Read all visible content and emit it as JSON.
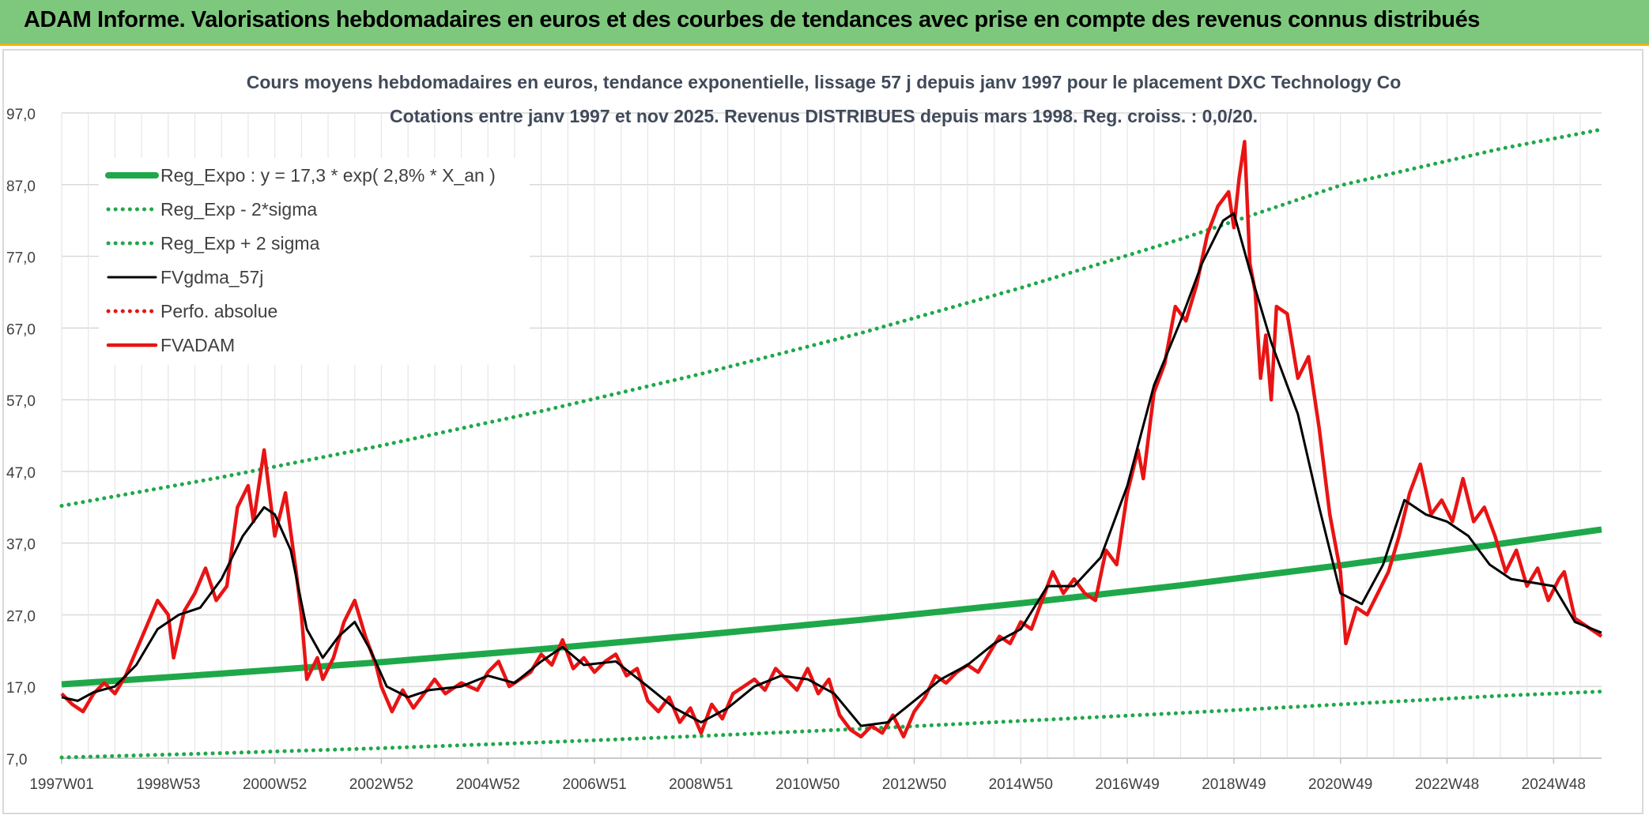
{
  "banner": {
    "title": "ADAM Informe. Valorisations hebdomadaires en euros et des courbes de tendances avec prise en compte des revenus connus distribués"
  },
  "chart_data": {
    "type": "line",
    "title": "Cours moyens hebdomadaires en euros, tendance exponentielle, lissage 57 j depuis janv 1997 pour le placement DXC Technology Co",
    "subtitle": "Cotations entre janv 1997 et nov 2025. Revenus DISTRIBUES depuis mars 1998. Reg. croiss. : 0,0/20.",
    "xlabel": "",
    "ylabel": "",
    "ylim": [
      7,
      97
    ],
    "yticks": [
      "97,0",
      "87,0",
      "77,0",
      "67,0",
      "57,0",
      "47,0",
      "37,0",
      "27,0",
      "17,0",
      "7,0"
    ],
    "xlim": [
      1997.0,
      2025.9
    ],
    "xticks": [
      {
        "label": "1997W01",
        "x": 1997.0
      },
      {
        "label": "1998W53",
        "x": 1999.0
      },
      {
        "label": "2000W52",
        "x": 2001.0
      },
      {
        "label": "2002W52",
        "x": 2003.0
      },
      {
        "label": "2004W52",
        "x": 2005.0
      },
      {
        "label": "2006W51",
        "x": 2007.0
      },
      {
        "label": "2008W51",
        "x": 2009.0
      },
      {
        "label": "2010W50",
        "x": 2011.0
      },
      {
        "label": "2012W50",
        "x": 2013.0
      },
      {
        "label": "2014W50",
        "x": 2015.0
      },
      {
        "label": "2016W49",
        "x": 2017.0
      },
      {
        "label": "2018W49",
        "x": 2019.0
      },
      {
        "label": "2020W49",
        "x": 2021.0
      },
      {
        "label": "2022W48",
        "x": 2023.0
      },
      {
        "label": "2024W48",
        "x": 2025.0
      }
    ],
    "grid": true,
    "legend_position": "top-left",
    "series": [
      {
        "name": "Reg_Expo : y = 17,3 * exp( 2,8% *  X_an )",
        "color": "#1fa84a",
        "style": "solid",
        "points": [
          [
            1997.0,
            17.3
          ],
          [
            2000.0,
            18.8
          ],
          [
            2003.0,
            20.4
          ],
          [
            2006.0,
            22.2
          ],
          [
            2009.0,
            24.2
          ],
          [
            2012.0,
            26.3
          ],
          [
            2015.0,
            28.6
          ],
          [
            2018.0,
            31.1
          ],
          [
            2021.0,
            33.9
          ],
          [
            2024.0,
            36.9
          ],
          [
            2025.9,
            38.9
          ]
        ]
      },
      {
        "name": "Reg_Exp - 2*sigma",
        "color": "#1fa84a",
        "style": "dotted",
        "points": [
          [
            1997.0,
            7.1
          ],
          [
            2000.0,
            7.7
          ],
          [
            2003.0,
            8.4
          ],
          [
            2006.0,
            9.2
          ],
          [
            2009.0,
            10.1
          ],
          [
            2012.0,
            11.1
          ],
          [
            2015.0,
            12.2
          ],
          [
            2018.0,
            13.3
          ],
          [
            2021.0,
            14.5
          ],
          [
            2024.0,
            15.7
          ],
          [
            2025.9,
            16.3
          ]
        ]
      },
      {
        "name": "Reg_Exp + 2 sigma",
        "color": "#1fa84a",
        "style": "dotted",
        "points": [
          [
            1997.0,
            42.2
          ],
          [
            2000.0,
            46.2
          ],
          [
            2003.0,
            50.6
          ],
          [
            2006.0,
            55.4
          ],
          [
            2009.0,
            60.6
          ],
          [
            2012.0,
            66.3
          ],
          [
            2015.0,
            72.6
          ],
          [
            2018.0,
            79.4
          ],
          [
            2021.0,
            86.9
          ],
          [
            2024.0,
            92.0
          ],
          [
            2025.9,
            94.7
          ]
        ]
      },
      {
        "name": "FVgdma_57j",
        "color": "#000000",
        "style": "solid",
        "points": [
          [
            1997.0,
            15.5
          ],
          [
            1997.3,
            15.0
          ],
          [
            1997.6,
            16.2
          ],
          [
            1998.0,
            17.0
          ],
          [
            1998.4,
            20.0
          ],
          [
            1998.8,
            25.0
          ],
          [
            1999.2,
            27.0
          ],
          [
            1999.6,
            28.0
          ],
          [
            2000.0,
            32.0
          ],
          [
            2000.4,
            38.0
          ],
          [
            2000.8,
            42.0
          ],
          [
            2001.0,
            41.0
          ],
          [
            2001.3,
            36.0
          ],
          [
            2001.6,
            25.0
          ],
          [
            2001.9,
            21.0
          ],
          [
            2002.2,
            24.0
          ],
          [
            2002.5,
            26.0
          ],
          [
            2002.8,
            22.0
          ],
          [
            2003.1,
            17.0
          ],
          [
            2003.5,
            15.5
          ],
          [
            2003.9,
            16.5
          ],
          [
            2004.5,
            17.0
          ],
          [
            2005.0,
            18.5
          ],
          [
            2005.5,
            17.5
          ],
          [
            2006.0,
            20.5
          ],
          [
            2006.4,
            22.5
          ],
          [
            2006.8,
            20.0
          ],
          [
            2007.4,
            20.5
          ],
          [
            2008.0,
            17.0
          ],
          [
            2008.5,
            14.0
          ],
          [
            2009.0,
            12.0
          ],
          [
            2009.5,
            14.0
          ],
          [
            2010.0,
            17.0
          ],
          [
            2010.5,
            18.5
          ],
          [
            2011.0,
            18.0
          ],
          [
            2011.5,
            16.0
          ],
          [
            2012.0,
            11.5
          ],
          [
            2012.5,
            12.0
          ],
          [
            2013.0,
            15.0
          ],
          [
            2013.5,
            18.0
          ],
          [
            2014.0,
            20.0
          ],
          [
            2014.5,
            23.0
          ],
          [
            2015.0,
            25.0
          ],
          [
            2015.5,
            31.0
          ],
          [
            2016.0,
            31.0
          ],
          [
            2016.5,
            35.0
          ],
          [
            2017.0,
            45.0
          ],
          [
            2017.5,
            59.0
          ],
          [
            2018.0,
            68.0
          ],
          [
            2018.4,
            76.0
          ],
          [
            2018.8,
            82.0
          ],
          [
            2019.0,
            83.0
          ],
          [
            2019.3,
            75.0
          ],
          [
            2019.7,
            65.0
          ],
          [
            2020.2,
            55.0
          ],
          [
            2020.6,
            42.0
          ],
          [
            2021.0,
            30.0
          ],
          [
            2021.4,
            28.5
          ],
          [
            2021.8,
            34.0
          ],
          [
            2022.2,
            43.0
          ],
          [
            2022.6,
            41.0
          ],
          [
            2023.0,
            40.0
          ],
          [
            2023.4,
            38.0
          ],
          [
            2023.8,
            34.0
          ],
          [
            2024.2,
            32.0
          ],
          [
            2024.6,
            31.5
          ],
          [
            2025.0,
            31.0
          ],
          [
            2025.4,
            26.0
          ],
          [
            2025.9,
            24.5
          ]
        ]
      },
      {
        "name": "Perfo. absolue",
        "color": "#e81414",
        "style": "dotted",
        "points": []
      },
      {
        "name": "FVADAM",
        "color": "#e81414",
        "style": "solid",
        "points": [
          [
            1997.0,
            16.0
          ],
          [
            1997.2,
            14.5
          ],
          [
            1997.4,
            13.5
          ],
          [
            1997.6,
            16.0
          ],
          [
            1997.8,
            17.5
          ],
          [
            1998.0,
            16.0
          ],
          [
            1998.2,
            18.5
          ],
          [
            1998.4,
            22.0
          ],
          [
            1998.6,
            25.5
          ],
          [
            1998.8,
            29.0
          ],
          [
            1999.0,
            27.0
          ],
          [
            1999.1,
            21.0
          ],
          [
            1999.3,
            27.5
          ],
          [
            1999.5,
            30.0
          ],
          [
            1999.7,
            33.5
          ],
          [
            1999.9,
            29.0
          ],
          [
            2000.1,
            31.0
          ],
          [
            2000.3,
            42.0
          ],
          [
            2000.5,
            45.0
          ],
          [
            2000.6,
            40.0
          ],
          [
            2000.8,
            50.0
          ],
          [
            2001.0,
            38.0
          ],
          [
            2001.2,
            44.0
          ],
          [
            2001.4,
            33.0
          ],
          [
            2001.5,
            27.0
          ],
          [
            2001.6,
            18.0
          ],
          [
            2001.8,
            21.0
          ],
          [
            2001.9,
            18.0
          ],
          [
            2002.1,
            21.0
          ],
          [
            2002.3,
            26.0
          ],
          [
            2002.5,
            29.0
          ],
          [
            2002.7,
            24.0
          ],
          [
            2002.9,
            20.0
          ],
          [
            2003.0,
            17.0
          ],
          [
            2003.2,
            13.5
          ],
          [
            2003.4,
            16.5
          ],
          [
            2003.6,
            14.0
          ],
          [
            2003.8,
            16.0
          ],
          [
            2004.0,
            18.0
          ],
          [
            2004.2,
            16.0
          ],
          [
            2004.5,
            17.5
          ],
          [
            2004.8,
            16.5
          ],
          [
            2005.0,
            19.0
          ],
          [
            2005.2,
            20.5
          ],
          [
            2005.4,
            17.0
          ],
          [
            2005.6,
            18.0
          ],
          [
            2005.8,
            19.0
          ],
          [
            2006.0,
            21.5
          ],
          [
            2006.2,
            20.0
          ],
          [
            2006.4,
            23.5
          ],
          [
            2006.6,
            19.5
          ],
          [
            2006.8,
            21.0
          ],
          [
            2007.0,
            19.0
          ],
          [
            2007.2,
            20.5
          ],
          [
            2007.4,
            21.5
          ],
          [
            2007.6,
            18.5
          ],
          [
            2007.8,
            19.5
          ],
          [
            2008.0,
            15.0
          ],
          [
            2008.2,
            13.5
          ],
          [
            2008.4,
            15.5
          ],
          [
            2008.6,
            12.0
          ],
          [
            2008.8,
            14.0
          ],
          [
            2009.0,
            10.5
          ],
          [
            2009.2,
            14.5
          ],
          [
            2009.4,
            12.5
          ],
          [
            2009.6,
            16.0
          ],
          [
            2009.8,
            17.0
          ],
          [
            2010.0,
            18.0
          ],
          [
            2010.2,
            16.5
          ],
          [
            2010.4,
            19.5
          ],
          [
            2010.6,
            18.0
          ],
          [
            2010.8,
            16.5
          ],
          [
            2011.0,
            19.5
          ],
          [
            2011.2,
            16.0
          ],
          [
            2011.4,
            18.0
          ],
          [
            2011.6,
            13.0
          ],
          [
            2011.8,
            11.0
          ],
          [
            2012.0,
            10.0
          ],
          [
            2012.2,
            11.5
          ],
          [
            2012.4,
            10.5
          ],
          [
            2012.6,
            13.0
          ],
          [
            2012.8,
            10.0
          ],
          [
            2013.0,
            13.5
          ],
          [
            2013.2,
            15.5
          ],
          [
            2013.4,
            18.5
          ],
          [
            2013.6,
            17.5
          ],
          [
            2013.8,
            19.0
          ],
          [
            2014.0,
            20.0
          ],
          [
            2014.2,
            19.0
          ],
          [
            2014.4,
            21.5
          ],
          [
            2014.6,
            24.0
          ],
          [
            2014.8,
            23.0
          ],
          [
            2015.0,
            26.0
          ],
          [
            2015.2,
            25.0
          ],
          [
            2015.4,
            29.0
          ],
          [
            2015.6,
            33.0
          ],
          [
            2015.8,
            30.0
          ],
          [
            2016.0,
            32.0
          ],
          [
            2016.2,
            30.0
          ],
          [
            2016.4,
            29.0
          ],
          [
            2016.6,
            36.0
          ],
          [
            2016.8,
            34.0
          ],
          [
            2017.0,
            44.0
          ],
          [
            2017.2,
            50.0
          ],
          [
            2017.3,
            46.0
          ],
          [
            2017.5,
            58.0
          ],
          [
            2017.7,
            62.0
          ],
          [
            2017.9,
            70.0
          ],
          [
            2018.1,
            68.0
          ],
          [
            2018.3,
            73.0
          ],
          [
            2018.5,
            80.0
          ],
          [
            2018.7,
            84.0
          ],
          [
            2018.9,
            86.0
          ],
          [
            2019.0,
            81.0
          ],
          [
            2019.1,
            88.0
          ],
          [
            2019.2,
            93.0
          ],
          [
            2019.3,
            76.0
          ],
          [
            2019.4,
            72.0
          ],
          [
            2019.5,
            60.0
          ],
          [
            2019.6,
            66.0
          ],
          [
            2019.7,
            57.0
          ],
          [
            2019.8,
            70.0
          ],
          [
            2020.0,
            69.0
          ],
          [
            2020.2,
            60.0
          ],
          [
            2020.4,
            63.0
          ],
          [
            2020.6,
            53.0
          ],
          [
            2020.8,
            41.0
          ],
          [
            2021.0,
            33.0
          ],
          [
            2021.1,
            23.0
          ],
          [
            2021.3,
            28.0
          ],
          [
            2021.5,
            27.0
          ],
          [
            2021.7,
            30.0
          ],
          [
            2021.9,
            33.0
          ],
          [
            2022.1,
            38.0
          ],
          [
            2022.3,
            44.0
          ],
          [
            2022.5,
            48.0
          ],
          [
            2022.7,
            41.0
          ],
          [
            2022.9,
            43.0
          ],
          [
            2023.1,
            40.0
          ],
          [
            2023.3,
            46.0
          ],
          [
            2023.5,
            40.0
          ],
          [
            2023.7,
            42.0
          ],
          [
            2023.9,
            38.0
          ],
          [
            2024.1,
            33.0
          ],
          [
            2024.3,
            36.0
          ],
          [
            2024.5,
            31.0
          ],
          [
            2024.7,
            33.5
          ],
          [
            2024.9,
            29.0
          ],
          [
            2025.1,
            32.0
          ],
          [
            2025.2,
            33.0
          ],
          [
            2025.4,
            26.5
          ],
          [
            2025.6,
            25.5
          ],
          [
            2025.9,
            24.0
          ]
        ]
      }
    ]
  }
}
